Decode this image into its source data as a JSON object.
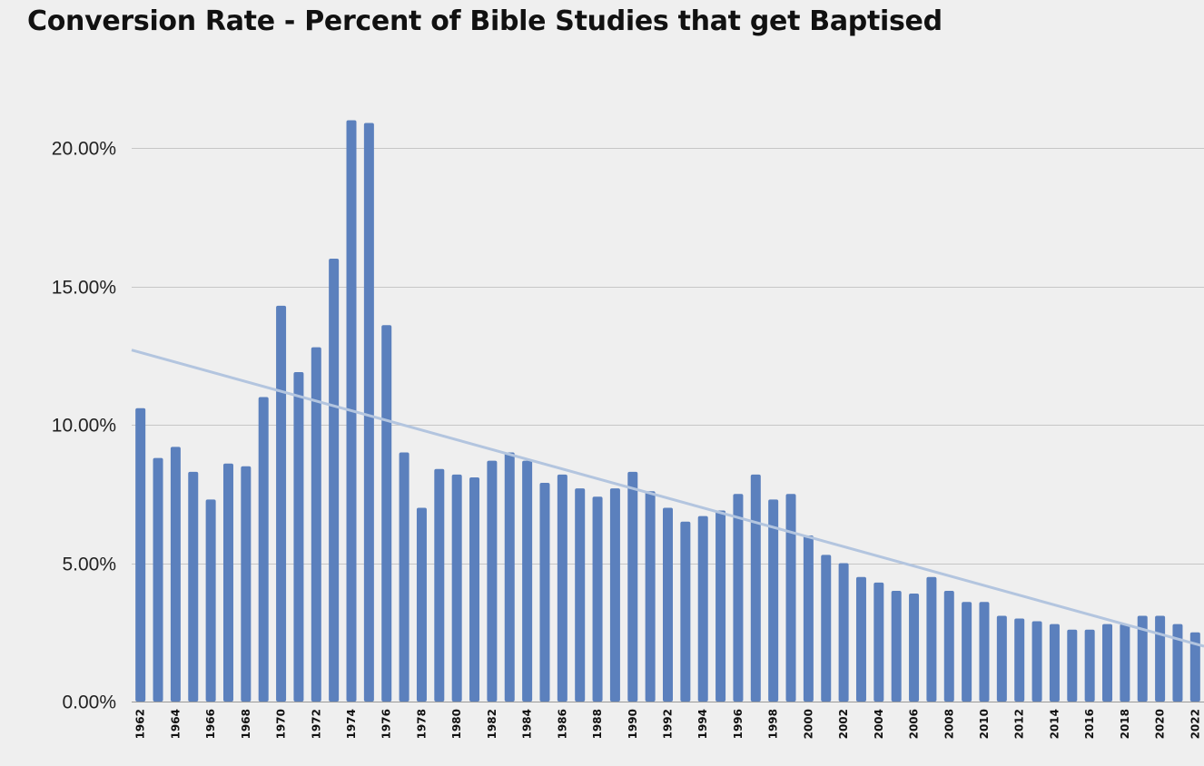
{
  "chart_data": {
    "type": "bar",
    "title": "Conversion Rate - Percent of Bible Studies that get Baptised",
    "xlabel": "",
    "ylabel": "",
    "ylim": [
      0,
      0.2
    ],
    "y_ticks": [
      0,
      0.05,
      0.1,
      0.15,
      0.2
    ],
    "y_tick_labels": [
      "0.00%",
      "5.00%",
      "10.00%",
      "15.00%",
      "20.00%"
    ],
    "grid": true,
    "legend": "none",
    "bar_color": "#5b80bd",
    "trendline": {
      "type": "linear",
      "color": "#b3c5df",
      "start": 0.127,
      "end": 0.02
    },
    "categories": [
      "1962",
      "1963",
      "1964",
      "1965",
      "1966",
      "1967",
      "1968",
      "1969",
      "1970",
      "1971",
      "1972",
      "1973",
      "1974",
      "1975",
      "1976",
      "1977",
      "1978",
      "1979",
      "1980",
      "1981",
      "1982",
      "1983",
      "1984",
      "1985",
      "1986",
      "1987",
      "1988",
      "1989",
      "1990",
      "1991",
      "1992",
      "1993",
      "1994",
      "1995",
      "1996",
      "1997",
      "1998",
      "1999",
      "2000",
      "2001",
      "2002",
      "2003",
      "2004",
      "2005",
      "2006",
      "2007",
      "2008",
      "2009",
      "2010",
      "2011",
      "2012",
      "2013",
      "2014",
      "2015",
      "2016",
      "2017",
      "2018",
      "2019",
      "2020",
      "2021",
      "2022"
    ],
    "x_tick_labels": [
      "1962",
      "",
      "1964",
      "",
      "1966",
      "",
      "1968",
      "",
      "1970",
      "",
      "1972",
      "",
      "1974",
      "",
      "1976",
      "",
      "1978",
      "",
      "1980",
      "",
      "1982",
      "",
      "1984",
      "",
      "1986",
      "",
      "1988",
      "",
      "1990",
      "",
      "1992",
      "",
      "1994",
      "",
      "1996",
      "",
      "1998",
      "",
      "2000",
      "",
      "2002",
      "",
      "2004",
      "",
      "2006",
      "",
      "2008",
      "",
      "2010",
      "",
      "2012",
      "",
      "2014",
      "",
      "2016",
      "",
      "2018",
      "",
      "2020",
      "",
      "2022"
    ],
    "values": [
      0.106,
      0.088,
      0.092,
      0.083,
      0.073,
      0.086,
      0.085,
      0.11,
      0.143,
      0.119,
      0.128,
      0.16,
      0.21,
      0.209,
      0.136,
      0.09,
      0.07,
      0.084,
      0.082,
      0.081,
      0.087,
      0.09,
      0.087,
      0.079,
      0.082,
      0.077,
      0.074,
      0.077,
      0.083,
      0.076,
      0.07,
      0.065,
      0.067,
      0.069,
      0.075,
      0.082,
      0.073,
      0.075,
      0.06,
      0.053,
      0.05,
      0.045,
      0.043,
      0.04,
      0.039,
      0.045,
      0.04,
      0.036,
      0.036,
      0.031,
      0.03,
      0.029,
      0.028,
      0.026,
      0.026,
      0.028,
      0.028,
      0.031,
      0.031,
      0.028,
      0.025
    ]
  }
}
